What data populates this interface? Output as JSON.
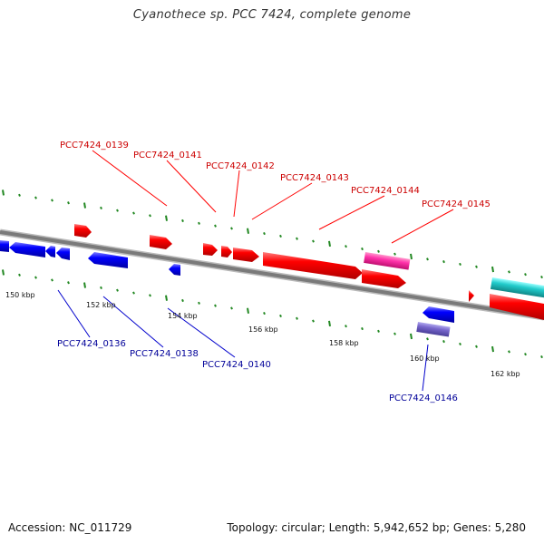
{
  "title": "Cyanothece sp. PCC 7424, complete genome",
  "footer": {
    "accession": "Accession: NC_011729",
    "summary": "Topology: circular; Length: 5,942,652 bp; Genes: 5,280"
  },
  "colors": {
    "forward_gene": "#ff0000",
    "reverse_gene": "#0000ff",
    "forward_label": "#cc0000",
    "reverse_label": "#000099",
    "rna_magenta": "#ff33aa",
    "rna_cyan": "#22cccc",
    "rna_purple": "#7766cc",
    "backbone": "#888888",
    "ticks": "#228822"
  },
  "scale_labels": [
    "150 kbp",
    "152 kbp",
    "154 kbp",
    "156 kbp",
    "158 kbp",
    "160 kbp",
    "162 kbp"
  ],
  "forward_labels": [
    "PCC7424_0139",
    "PCC7424_0141",
    "PCC7424_0142",
    "PCC7424_0143",
    "PCC7424_0144",
    "PCC7424_0145"
  ],
  "reverse_labels": [
    "PCC7424_0136",
    "PCC7424_0138",
    "PCC7424_0140",
    "PCC7424_0146"
  ]
}
